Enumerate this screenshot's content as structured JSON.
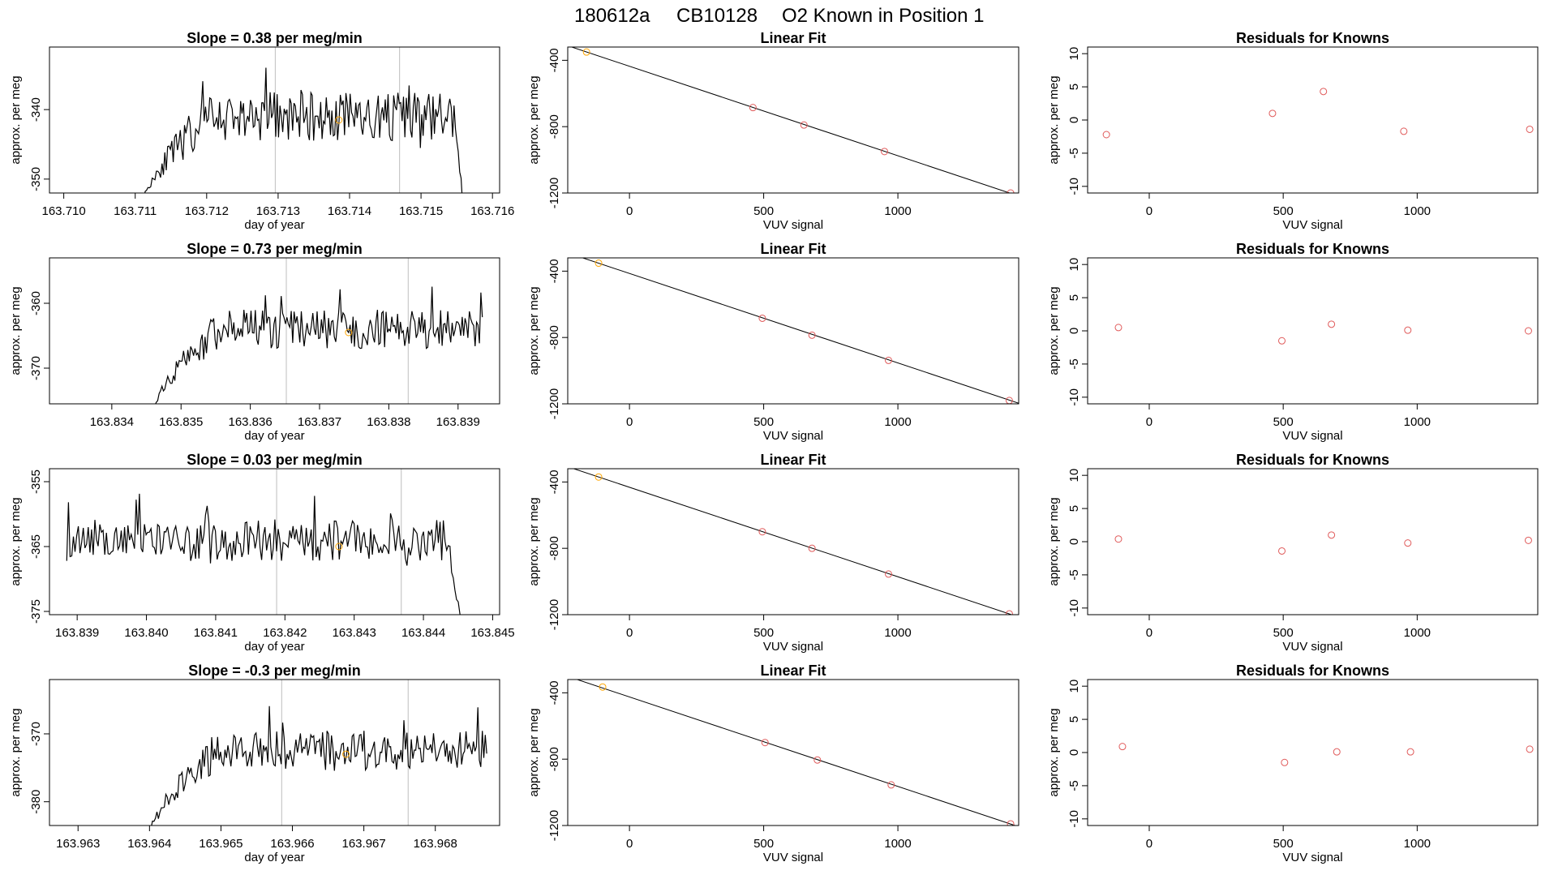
{
  "figure": {
    "title_run": "180612a",
    "title_tank": "CB10128",
    "title_desc": "O2 Known in Position  1"
  },
  "colors": {
    "line": "#000000",
    "vline": "#bebebe",
    "points": "#e05a5a",
    "highlight": "#ffa500"
  },
  "chart_data": [
    {
      "row": 1,
      "type": "line",
      "title_prefix": "Slope = ",
      "slope": "0.38",
      "title_suffix": " per meg/min",
      "xlabel": "day of year",
      "ylabel": "approx. per meg",
      "xlim": [
        163.7098,
        163.7161
      ],
      "ylim": [
        -352.0,
        -331.0
      ],
      "xticks": [
        163.71,
        163.711,
        163.712,
        163.713,
        163.714,
        163.715,
        163.716
      ],
      "xtick_decimals": 3,
      "yticks": [
        -350,
        -340
      ],
      "vlines": [
        163.71296,
        163.7147
      ],
      "marker": {
        "x": 163.71385,
        "y": -341.5
      },
      "start": 163.7111,
      "end": 163.7156,
      "n": 230,
      "base": -341,
      "amp": 3.5,
      "seed": 11,
      "rampUntil": 163.7121,
      "rampFrom": -354,
      "dropStart": 163.71545,
      "dropTo": -355
    },
    {
      "row": 2,
      "type": "line",
      "title_prefix": "Slope = ",
      "slope": "0.73",
      "title_suffix": " per meg/min",
      "xlabel": "day of year",
      "ylabel": "approx. per meg",
      "xlim": [
        163.8331,
        163.8396
      ],
      "ylim": [
        -375.5,
        -353.0
      ],
      "xticks": [
        163.834,
        163.835,
        163.836,
        163.837,
        163.838,
        163.839
      ],
      "xtick_decimals": 3,
      "yticks": [
        -370,
        -360
      ],
      "vlines": [
        163.83652,
        163.83828
      ],
      "marker": {
        "x": 163.83742,
        "y": -364.5
      },
      "start": 163.8346,
      "end": 163.83935,
      "n": 230,
      "base": -364,
      "amp": 3.0,
      "seed": 23,
      "rampUntil": 163.8356,
      "rampFrom": -377,
      "dropStart": null,
      "dropTo": null
    },
    {
      "row": 3,
      "type": "line",
      "title_prefix": "Slope = ",
      "slope": "0.03",
      "title_suffix": " per meg/min",
      "xlabel": "day of year",
      "ylabel": "approx. per meg",
      "xlim": [
        163.8386,
        163.8451
      ],
      "ylim": [
        -375.5,
        -353.0
      ],
      "xticks": [
        163.839,
        163.84,
        163.841,
        163.842,
        163.843,
        163.844,
        163.845
      ],
      "xtick_decimals": 3,
      "yticks": [
        -375,
        -365,
        -355
      ],
      "vlines": [
        163.84188,
        163.84368
      ],
      "marker": {
        "x": 163.84278,
        "y": -365.0
      },
      "start": 163.83885,
      "end": 163.84455,
      "n": 240,
      "base": -364,
      "amp": 3.2,
      "seed": 37,
      "rampUntil": null,
      "rampFrom": null,
      "dropStart": 163.84435,
      "dropTo": -377
    },
    {
      "row": 4,
      "type": "line",
      "title_prefix": "Slope = ",
      "slope": "-0.3",
      "title_suffix": " per meg/min",
      "xlabel": "day of year",
      "ylabel": "approx. per meg",
      "xlim": [
        163.9626,
        163.9689
      ],
      "ylim": [
        -383.5,
        -362.0
      ],
      "xticks": [
        163.963,
        163.964,
        163.965,
        163.966,
        163.967,
        163.968
      ],
      "xtick_decimals": 3,
      "yticks": [
        -380,
        -370
      ],
      "vlines": [
        163.96585,
        163.96762
      ],
      "marker": {
        "x": 163.96675,
        "y": -373.0
      },
      "start": 163.96398,
      "end": 163.96872,
      "n": 230,
      "base": -372.5,
      "amp": 3.0,
      "seed": 53,
      "rampUntil": 163.96495,
      "rampFrom": -386,
      "dropStart": null,
      "dropTo": null
    },
    {
      "row": 1,
      "type": "scatter_fit",
      "title": "Linear Fit",
      "xlabel": "VUV signal",
      "ylabel": "approx. per meg",
      "xlim": [
        -230,
        1450
      ],
      "ylim": [
        -1200,
        -320
      ],
      "xticks": [
        0,
        500,
        1000
      ],
      "yticks": [
        -400,
        -800,
        -1200
      ],
      "x": [
        -160,
        460,
        650,
        950,
        1420
      ],
      "y": [
        -350,
        -685,
        -790,
        -950,
        -1200
      ],
      "fit": {
        "slope": -0.5395,
        "intercept": -436
      }
    },
    {
      "row": 2,
      "type": "scatter_fit",
      "title": "Linear Fit",
      "xlabel": "VUV signal",
      "ylabel": "approx. per meg",
      "xlim": [
        -230,
        1450
      ],
      "ylim": [
        -1200,
        -320
      ],
      "xticks": [
        0,
        500,
        1000
      ],
      "yticks": [
        -400,
        -800,
        -1200
      ],
      "x": [
        -115,
        495,
        680,
        965,
        1415
      ],
      "y": [
        -352,
        -684,
        -786,
        -938,
        -1180
      ],
      "fit": {
        "slope": -0.5395,
        "intercept": -414
      }
    },
    {
      "row": 3,
      "type": "scatter_fit",
      "title": "Linear Fit",
      "xlabel": "VUV signal",
      "ylabel": "approx. per meg",
      "xlim": [
        -230,
        1450
      ],
      "ylim": [
        -1200,
        -320
      ],
      "xticks": [
        0,
        500,
        1000
      ],
      "yticks": [
        -400,
        -800,
        -1200
      ],
      "x": [
        -115,
        495,
        680,
        965,
        1415
      ],
      "y": [
        -370,
        -700,
        -800,
        -955,
        -1195
      ],
      "fit": {
        "slope": -0.5395,
        "intercept": -432
      }
    },
    {
      "row": 4,
      "type": "scatter_fit",
      "title": "Linear Fit",
      "xlabel": "VUV signal",
      "ylabel": "approx. per meg",
      "xlim": [
        -230,
        1450
      ],
      "ylim": [
        -1200,
        -320
      ],
      "xticks": [
        0,
        500,
        1000
      ],
      "yticks": [
        -400,
        -800,
        -1200
      ],
      "x": [
        -100,
        505,
        700,
        975,
        1420
      ],
      "y": [
        -365,
        -700,
        -805,
        -955,
        -1190
      ],
      "fit": {
        "slope": -0.5395,
        "intercept": -425
      }
    },
    {
      "row": 1,
      "type": "scatter",
      "title": "Residuals for Knowns",
      "xlabel": "VUV signal",
      "ylabel": "approx. per meg",
      "xlim": [
        -230,
        1450
      ],
      "ylim": [
        -11,
        11
      ],
      "xticks": [
        0,
        500,
        1000
      ],
      "yticks": [
        -10,
        -5,
        0,
        5,
        10
      ],
      "x": [
        -160,
        460,
        650,
        950,
        1420
      ],
      "y": [
        -2.2,
        1.0,
        4.3,
        -1.7,
        -1.4
      ]
    },
    {
      "row": 2,
      "type": "scatter",
      "title": "Residuals for Knowns",
      "xlabel": "VUV signal",
      "ylabel": "approx. per meg",
      "xlim": [
        -230,
        1450
      ],
      "ylim": [
        -11,
        11
      ],
      "xticks": [
        0,
        500,
        1000
      ],
      "yticks": [
        -10,
        -5,
        0,
        5,
        10
      ],
      "x": [
        -115,
        495,
        680,
        965,
        1415
      ],
      "y": [
        0.5,
        -1.5,
        1.0,
        0.1,
        0.0
      ]
    },
    {
      "row": 3,
      "type": "scatter",
      "title": "Residuals for Knowns",
      "xlabel": "VUV signal",
      "ylabel": "approx. per meg",
      "xlim": [
        -230,
        1450
      ],
      "ylim": [
        -11,
        11
      ],
      "xticks": [
        0,
        500,
        1000
      ],
      "yticks": [
        -10,
        -5,
        0,
        5,
        10
      ],
      "x": [
        -115,
        495,
        680,
        965,
        1415
      ],
      "y": [
        0.4,
        -1.4,
        1.0,
        -0.2,
        0.2
      ]
    },
    {
      "row": 4,
      "type": "scatter",
      "title": "Residuals for Knowns",
      "xlabel": "VUV signal",
      "ylabel": "approx. per meg",
      "xlim": [
        -230,
        1450
      ],
      "ylim": [
        -11,
        11
      ],
      "xticks": [
        0,
        500,
        1000
      ],
      "yticks": [
        -10,
        -5,
        0,
        5,
        10
      ],
      "x": [
        -100,
        505,
        700,
        975,
        1420
      ],
      "y": [
        0.9,
        -1.5,
        0.1,
        0.1,
        0.5
      ]
    }
  ]
}
